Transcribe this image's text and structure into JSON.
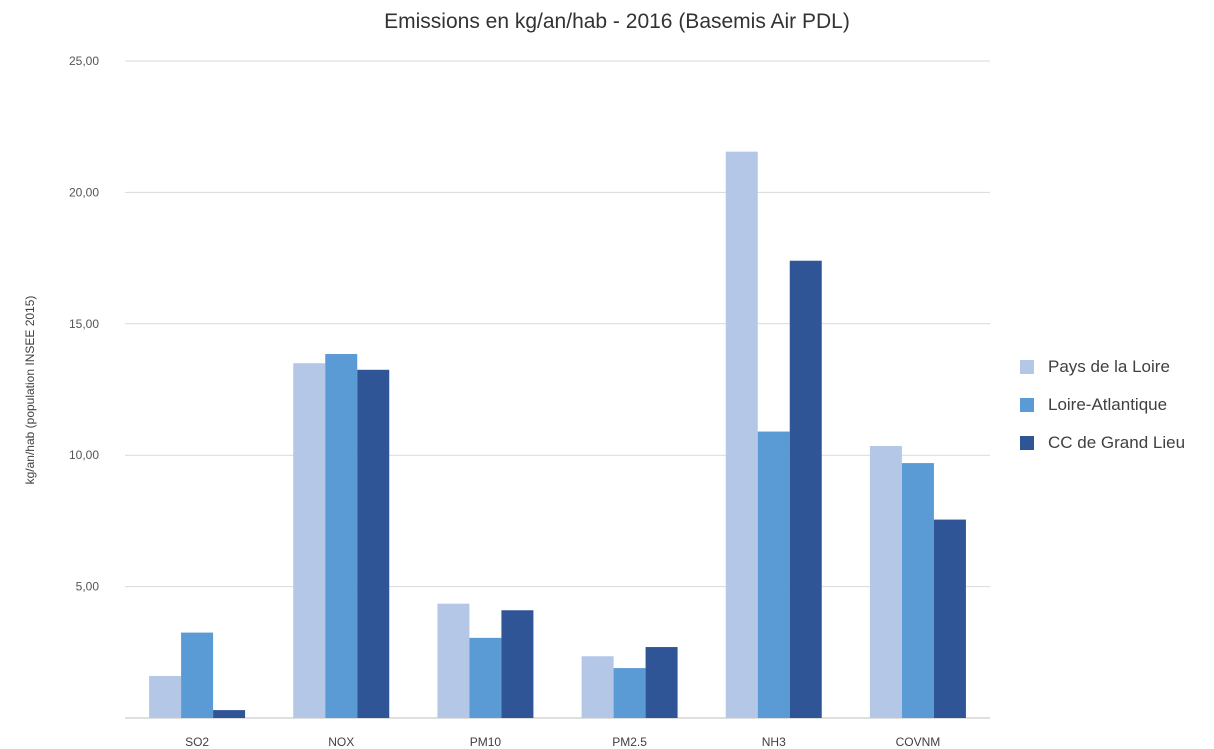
{
  "chart_data": {
    "type": "bar",
    "title": "Emissions en kg/an/hab - 2016 (Basemis Air PDL)",
    "xlabel": "",
    "ylabel": "kg/an/hab (population INSEE 2015)",
    "ylim": [
      0,
      25
    ],
    "yticks": [
      "",
      "5,00",
      "10,00",
      "15,00",
      "20,00",
      "25,00"
    ],
    "grid": true,
    "legend_position": "right",
    "categories": [
      "SO2",
      "NOX",
      "PM10",
      "PM2.5",
      "NH3",
      "COVNM"
    ],
    "series": [
      {
        "name": "Pays de la Loire",
        "color": "#b4c7e7",
        "values": [
          1.6,
          13.5,
          4.35,
          2.35,
          21.55,
          10.35
        ]
      },
      {
        "name": "Loire-Atlantique",
        "color": "#5b9bd5",
        "values": [
          3.25,
          13.85,
          3.05,
          1.9,
          10.9,
          9.7
        ]
      },
      {
        "name": "CC de Grand Lieu",
        "color": "#2f5597",
        "values": [
          0.3,
          13.25,
          4.1,
          2.7,
          17.4,
          7.55
        ]
      }
    ]
  }
}
